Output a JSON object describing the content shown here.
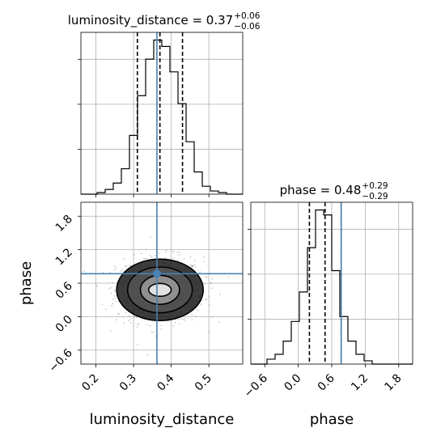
{
  "chart_data": [
    {
      "type": "histogram",
      "panel": "luminosity_distance marginal",
      "title_main": "luminosity_distance = 0.37",
      "title_sup": "+0.06",
      "title_sub": "−0.06",
      "x_range": [
        0.16,
        0.59
      ],
      "x_ticks": [
        0.2,
        0.3,
        0.4,
        0.5
      ],
      "bin_edges": [
        0.16,
        0.1815,
        0.203,
        0.2245,
        0.246,
        0.2675,
        0.289,
        0.3105,
        0.332,
        0.3535,
        0.375,
        0.3965,
        0.418,
        0.4395,
        0.461,
        0.4825,
        0.504,
        0.5255,
        0.547,
        0.5685,
        0.59
      ],
      "counts": [
        0,
        0,
        1,
        3,
        7,
        16,
        37,
        62,
        85,
        97,
        93,
        77,
        57,
        33,
        14,
        5,
        2,
        1,
        0,
        0
      ],
      "quantiles": [
        0.31,
        0.37,
        0.43
      ],
      "truth": 0.362,
      "grid": true
    },
    {
      "type": "histogram",
      "panel": "phase marginal",
      "title_main": "phase = 0.48",
      "title_sup": "+0.29",
      "title_sub": "−0.29",
      "x_range": [
        -0.85,
        2.05
      ],
      "x_ticks": [
        -0.6,
        0.0,
        0.6,
        1.2,
        1.8
      ],
      "x_tick_labels": [
        "−0.6",
        "0.0",
        "0.6",
        "1.2",
        "1.8"
      ],
      "bin_edges": [
        -0.85,
        -0.705,
        -0.56,
        -0.415,
        -0.27,
        -0.125,
        0.02,
        0.165,
        0.31,
        0.455,
        0.6,
        0.745,
        0.89,
        1.035,
        1.18,
        1.325,
        1.47,
        1.615,
        1.76,
        1.905,
        2.05
      ],
      "counts": [
        0,
        0,
        3,
        6,
        14,
        26,
        44,
        71,
        94,
        91,
        57,
        29,
        14,
        6,
        2,
        0,
        0,
        0,
        0,
        0
      ],
      "quantiles": [
        0.2,
        0.48,
        0.77
      ],
      "truth": 0.77,
      "grid": true
    },
    {
      "type": "scatter",
      "panel": "2D posterior",
      "xlabel": "luminosity_distance",
      "ylabel": "phase",
      "x_range": [
        0.16,
        0.59
      ],
      "y_range": [
        -0.85,
        2.05
      ],
      "x_ticks": [
        0.2,
        0.3,
        0.4,
        0.5
      ],
      "y_ticks": [
        -0.6,
        0.0,
        0.6,
        1.2,
        1.8
      ],
      "y_tick_labels": [
        "−0.6",
        "0.0",
        "0.6",
        "1.2",
        "1.8"
      ],
      "center": [
        0.37,
        0.48
      ],
      "spread": [
        0.055,
        0.29
      ],
      "truth": [
        0.362,
        0.77
      ],
      "contours": [
        {
          "level": "1",
          "rx": 0.03,
          "ry": 0.115
        },
        {
          "level": "2",
          "rx": 0.052,
          "ry": 0.26
        },
        {
          "level": "3",
          "rx": 0.086,
          "ry": 0.41
        },
        {
          "level": "4",
          "rx": 0.115,
          "ry": 0.55
        }
      ],
      "grid": true
    }
  ],
  "colors": {
    "truth": "#4682b4",
    "hist": "#000000",
    "grid": "#b0b0b0",
    "points": "#8a8a8a"
  }
}
